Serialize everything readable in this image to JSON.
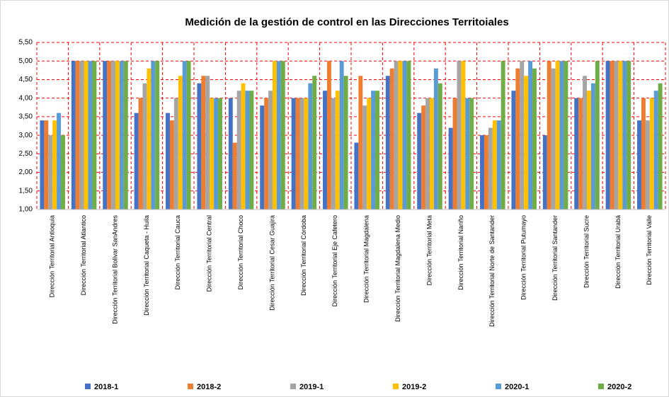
{
  "chart_data": {
    "type": "bar",
    "title": "Medición de la gestión de control en las Direcciones Territoiales",
    "categories": [
      "Dirección Territorial Antioquia",
      "Dirección Territorial Atlantico",
      "Dirección Territorial Bolivar SanAndres",
      "Dirección Territorial Caqueta - Huila",
      "Dirección Territorial Cauca",
      "Dirección Territorial Central",
      "Dirección Territorial Choco",
      "Dirección Territorial Cesar Guajira",
      "Dirección Territorial Córdoba",
      "Dirección Territorial Eje Cafetero",
      "Dirección Territorial Magdalena",
      "Dirección Territorial Magdalena Medio",
      "Dirección Territorial Meta",
      "Dirección Territorial Nariño",
      "Dirección Territorial Norte de Santander",
      "Dirección Territorial Putumayo",
      "Dirección Territorial Santander",
      "Dirección Territorial Sucre",
      "Dirección Territorial Urabá",
      "Dirección Territorial Valle"
    ],
    "series": [
      {
        "name": "2018-1",
        "color": "#4472c4",
        "values": [
          3.4,
          5.0,
          5.0,
          3.6,
          3.6,
          4.4,
          4.0,
          3.8,
          4.0,
          4.2,
          2.8,
          4.6,
          3.6,
          3.2,
          3.0,
          4.2,
          3.0,
          4.0,
          5.0,
          3.4
        ]
      },
      {
        "name": "2018-2",
        "color": "#ed7d31",
        "values": [
          3.4,
          5.0,
          5.0,
          4.0,
          3.4,
          4.6,
          2.8,
          4.0,
          4.0,
          5.0,
          4.6,
          4.8,
          3.8,
          4.0,
          3.0,
          4.8,
          5.0,
          4.0,
          5.0,
          4.0
        ]
      },
      {
        "name": "2019-1",
        "color": "#a5a5a5",
        "values": [
          3.0,
          5.0,
          5.0,
          4.4,
          4.0,
          4.6,
          4.2,
          4.2,
          4.0,
          4.0,
          3.8,
          5.0,
          4.0,
          5.0,
          3.2,
          5.0,
          4.8,
          4.6,
          5.0,
          3.4
        ]
      },
      {
        "name": "2019-2",
        "color": "#ffc000",
        "values": [
          3.4,
          5.0,
          5.0,
          4.8,
          4.6,
          4.0,
          4.4,
          5.0,
          4.0,
          4.2,
          4.0,
          5.0,
          4.0,
          5.0,
          3.4,
          4.6,
          5.0,
          4.2,
          5.0,
          4.0
        ]
      },
      {
        "name": "2020-1",
        "color": "#5b9bd5",
        "values": [
          3.6,
          5.0,
          5.0,
          5.0,
          5.0,
          4.0,
          4.2,
          5.0,
          4.4,
          5.0,
          4.2,
          5.0,
          4.8,
          4.0,
          3.4,
          5.0,
          5.0,
          4.4,
          5.0,
          4.2
        ]
      },
      {
        "name": "2020-2",
        "color": "#70ad47",
        "values": [
          3.0,
          5.0,
          5.0,
          5.0,
          5.0,
          4.0,
          4.2,
          5.0,
          4.6,
          4.6,
          4.2,
          5.0,
          4.4,
          4.0,
          5.0,
          4.8,
          5.0,
          5.0,
          5.0,
          4.4
        ]
      }
    ],
    "ylim": [
      1.0,
      5.5
    ],
    "yticks": [
      {
        "value": 1.0,
        "label": "1,00"
      },
      {
        "value": 1.5,
        "label": "1,50"
      },
      {
        "value": 2.0,
        "label": "2,00"
      },
      {
        "value": 2.5,
        "label": "2,50"
      },
      {
        "value": 3.0,
        "label": "3,00"
      },
      {
        "value": 3.5,
        "label": "3,50"
      },
      {
        "value": 4.0,
        "label": "4,00"
      },
      {
        "value": 4.5,
        "label": "4,50"
      },
      {
        "value": 5.0,
        "label": "5,00"
      },
      {
        "value": 5.5,
        "label": "5,50"
      }
    ],
    "grid": true,
    "legend": "bottom"
  }
}
